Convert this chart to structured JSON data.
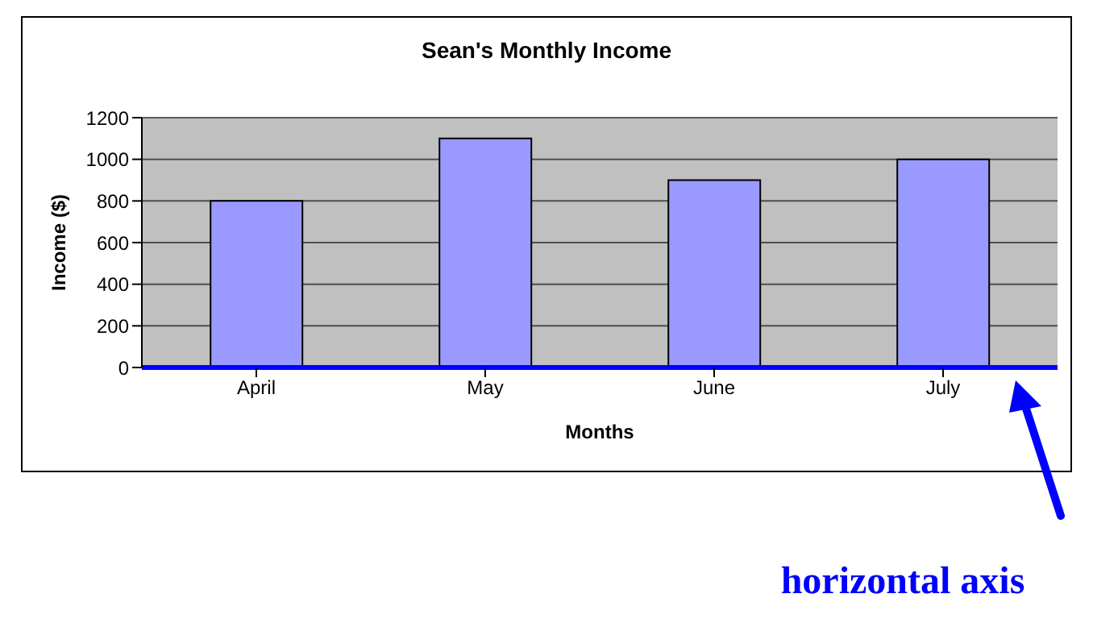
{
  "chart_data": {
    "type": "bar",
    "title": "Sean's Monthly Income",
    "xlabel": "Months",
    "ylabel": "Income ($)",
    "categories": [
      "April",
      "May",
      "June",
      "July"
    ],
    "values": [
      800,
      1100,
      900,
      1000
    ],
    "color": "#9999ff",
    "ylim": [
      0,
      1200
    ],
    "yticks": [
      0,
      200,
      400,
      600,
      800,
      1000,
      1200
    ],
    "grid": "y",
    "annotations": [
      "horizontal axis"
    ]
  }
}
